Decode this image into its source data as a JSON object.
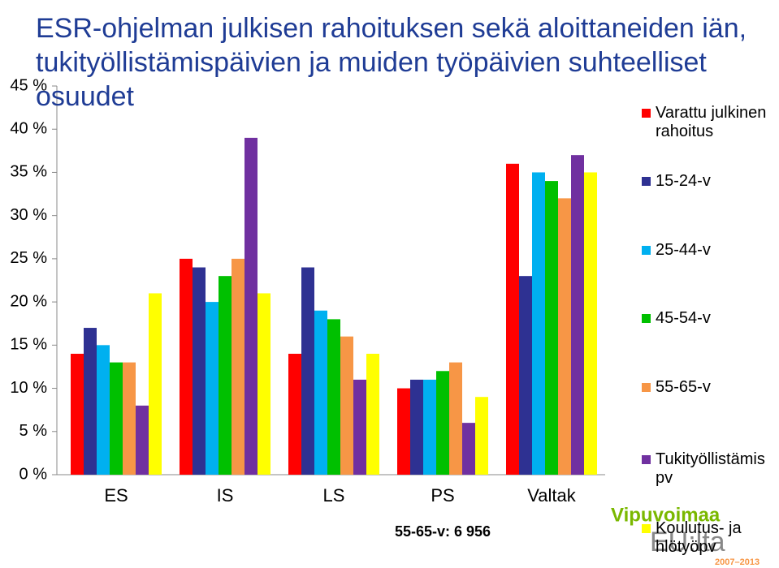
{
  "chart_data": {
    "type": "bar",
    "title": "ESR-ohjelman julkisen rahoituksen sekä aloittaneiden iän, tukityöllistämispäivien ja muiden työpäivien suhteelliset osuudet",
    "categories": [
      "ES",
      "IS",
      "LS",
      "PS",
      "Valtak"
    ],
    "series": [
      {
        "name": "Varattu julkinen rahoitus",
        "color": "#ff0000",
        "values": [
          14,
          25,
          14,
          10,
          36
        ]
      },
      {
        "name": "15-24-v",
        "color": "#2e3192",
        "values": [
          17,
          24,
          24,
          11,
          23
        ]
      },
      {
        "name": "25-44-v",
        "color": "#00b0f0",
        "values": [
          15,
          20,
          19,
          11,
          35
        ]
      },
      {
        "name": "45-54-v",
        "color": "#00c000",
        "values": [
          13,
          23,
          18,
          12,
          34
        ]
      },
      {
        "name": "55-65-v",
        "color": "#f79646",
        "values": [
          13,
          25,
          16,
          13,
          32
        ]
      },
      {
        "name": "Tukityöllistämis pv",
        "color": "#7030a0",
        "values": [
          8,
          39,
          11,
          6,
          37
        ]
      },
      {
        "name": "Koulutus- ja hlötyöpv",
        "color": "#ffff00",
        "values": [
          21,
          21,
          14,
          9,
          35
        ]
      }
    ],
    "ylim": [
      0,
      45
    ],
    "yticks": [
      {
        "value": 0,
        "label": "0 %"
      },
      {
        "value": 5,
        "label": "5 %"
      },
      {
        "value": 10,
        "label": "10 %"
      },
      {
        "value": 15,
        "label": "15 %"
      },
      {
        "value": 20,
        "label": "20 %"
      },
      {
        "value": 25,
        "label": "25 %"
      },
      {
        "value": 30,
        "label": "30 %"
      },
      {
        "value": 35,
        "label": "35 %"
      },
      {
        "value": 40,
        "label": "40 %"
      },
      {
        "value": 45,
        "label": "45 %"
      }
    ],
    "grid": false,
    "annotation": "55-65-v: 6 956",
    "logo": {
      "name": "Vipuvoimaa",
      "sub": "EU:lta",
      "years": "2007–2013"
    }
  }
}
